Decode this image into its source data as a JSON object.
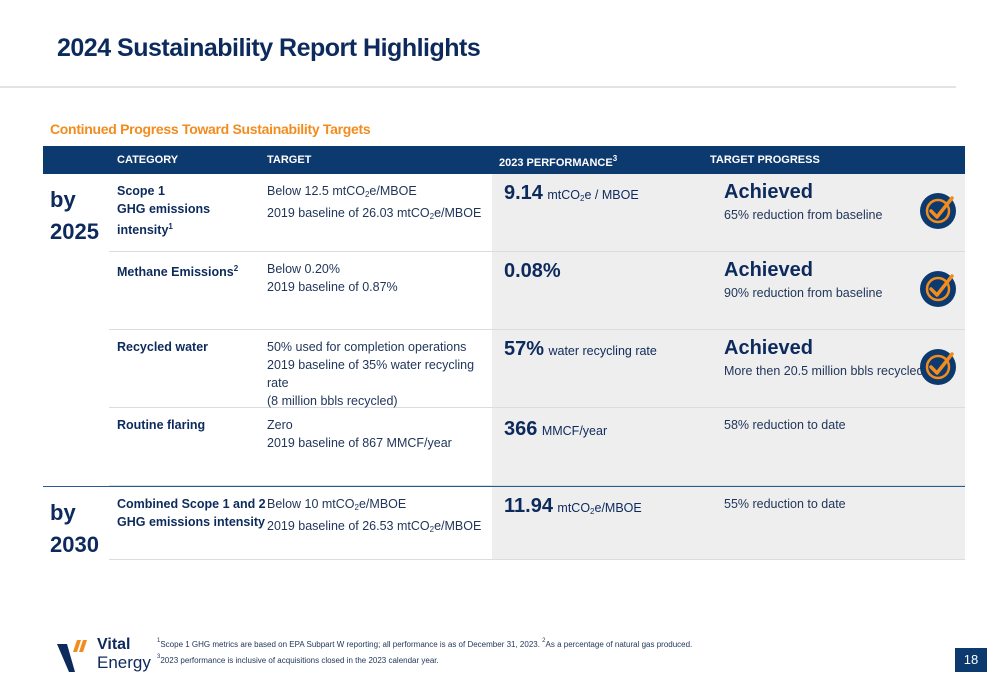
{
  "title": "2024 Sustainability Report Highlights",
  "subtitle": "Continued Progress Toward Sustainability Targets",
  "table": {
    "headers": {
      "category": "CATEGORY",
      "target": "TARGET",
      "performance": "2023 PERFORMANCE",
      "performance_sup": "3",
      "progress": "TARGET PROGRESS"
    },
    "groups": [
      {
        "label_line1": "by",
        "label_line2": "2025",
        "rows": [
          {
            "category_line1": "Scope 1",
            "category_line2": "GHG emissions intensity",
            "category_sup": "1",
            "target_line1_a": "Below 12.5 mtCO",
            "target_line1_sub": "2",
            "target_line1_b": "e/MBOE",
            "target_line2_a": "2019 baseline of 26.03 mtCO",
            "target_line2_sub": "2",
            "target_line2_b": "e/MBOE",
            "perf_value": "9.14",
            "perf_unit_a": "mtCO",
            "perf_unit_sub": "2",
            "perf_unit_b": "e / MBOE",
            "progress_head": "Achieved",
            "progress_sub": "65% reduction from baseline"
          },
          {
            "category_line1": "Methane Emissions",
            "category_sup": "2",
            "target_line1": "Below 0.20%",
            "target_line2": "2019 baseline of 0.87%",
            "perf_value": "0.08%",
            "progress_head": "Achieved",
            "progress_sub": "90% reduction from baseline"
          },
          {
            "category_line1": "Recycled water",
            "target_line1": "50% used for completion operations",
            "target_line2": "2019 baseline of 35% water recycling rate",
            "target_line3": "(8 million bbls recycled)",
            "perf_value": "57%",
            "perf_unit": "water recycling rate",
            "progress_head": "Achieved",
            "progress_sub": "More then 20.5 million bbls recycled"
          },
          {
            "category_line1": "Routine flaring",
            "target_line1": "Zero",
            "target_line2": "2019 baseline of 867 MMCF/year",
            "perf_value": "366",
            "perf_unit": "MMCF/year",
            "progress_plain": "58% reduction to date"
          }
        ]
      },
      {
        "label_line1": "by",
        "label_line2": "2030",
        "rows": [
          {
            "category_line1": "Combined Scope 1 and 2",
            "category_line2": "GHG emissions intensity",
            "target_line1_a": "Below 10 mtCO",
            "target_line1_sub": "2",
            "target_line1_b": "e/MBOE",
            "target_line2_a": "2019 baseline of 26.53 mtCO",
            "target_line2_sub": "2",
            "target_line2_b": "e/MBOE",
            "perf_value": "11.94",
            "perf_unit_a": "mtCO",
            "perf_unit_sub": "2",
            "perf_unit_b": "e/MBOE",
            "progress_plain": "55% reduction to date"
          }
        ]
      }
    ]
  },
  "footnotes": {
    "line1_sup1": "1",
    "line1_a": "Scope 1 GHG metrics are based on EPA Subpart W reporting; all performance is as of December 31, 2023. ",
    "line1_sup2": "2",
    "line1_b": "As a percentage of natural gas produced.",
    "line2_sup": "3",
    "line2": "2023 performance is inclusive of acquisitions closed in the 2023 calendar year."
  },
  "logo": {
    "line1": "Vital",
    "line2": "Energy"
  },
  "page_number": "18",
  "colors": {
    "navy": "#0d3a6e",
    "orange": "#f28c1d",
    "gray_panel": "#eeeeee"
  },
  "icons": {
    "achieved": "check-badge-icon"
  }
}
